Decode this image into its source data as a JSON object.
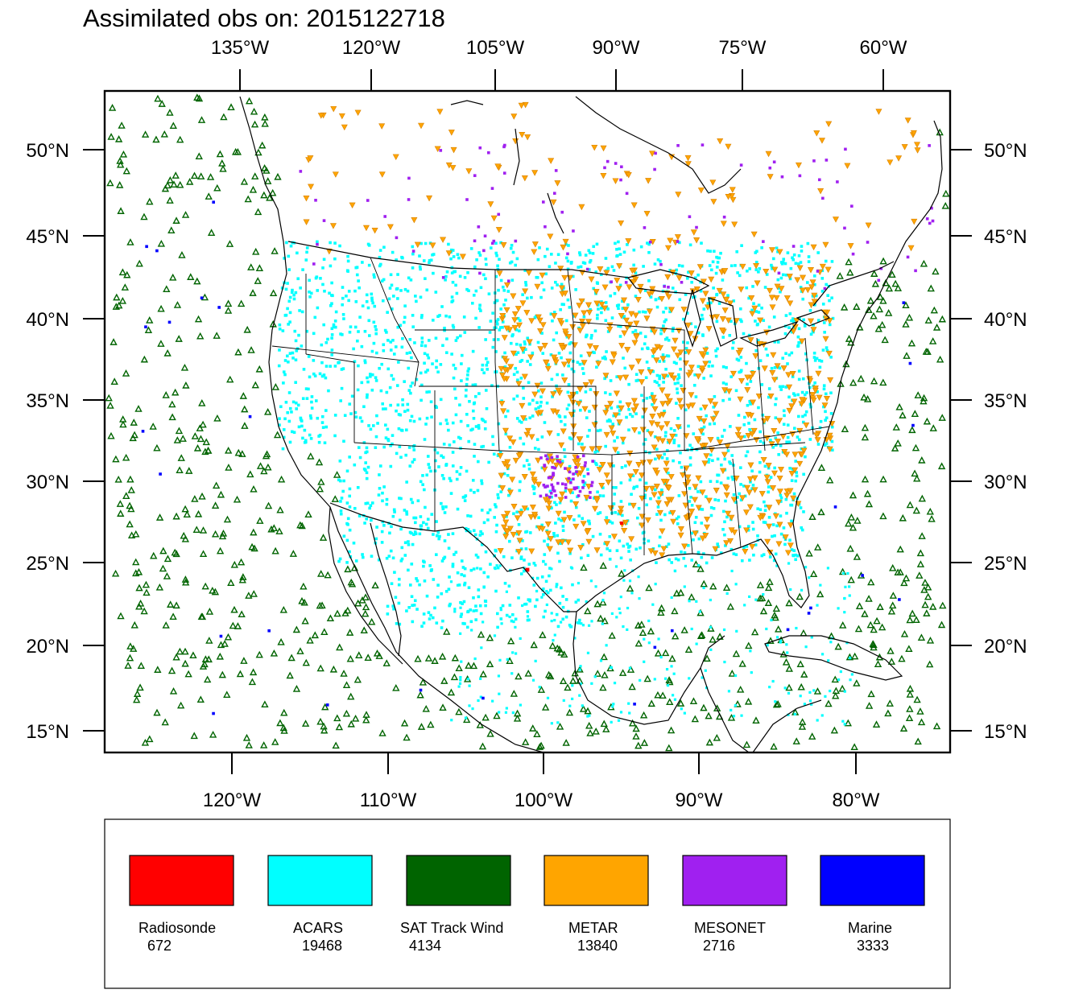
{
  "title": "Assimilated obs on: 2015122718",
  "top_axis_labels": [
    "135°W",
    "120°W",
    "105°W",
    "90°W",
    "75°W",
    "60°W"
  ],
  "bottom_axis_labels": [
    "120°W",
    "110°W",
    "100°W",
    "90°W",
    "80°W"
  ],
  "lat_labels": [
    "50°N",
    "45°N",
    "40°N",
    "35°N",
    "30°N",
    "25°N",
    "20°N",
    "15°N"
  ],
  "legend": [
    {
      "name": "Radiosonde",
      "count": "672",
      "color": "#ff0000"
    },
    {
      "name": "ACARS",
      "count": "19468",
      "color": "#00ffff"
    },
    {
      "name": "SAT Track Wind",
      "count": "4134",
      "color": "#006400"
    },
    {
      "name": "METAR",
      "count": "13840",
      "color": "#ffa500"
    },
    {
      "name": "MESONET",
      "count": "2716",
      "color": "#a020f0"
    },
    {
      "name": "Marine",
      "count": "3333",
      "color": "#0000ff"
    }
  ]
}
